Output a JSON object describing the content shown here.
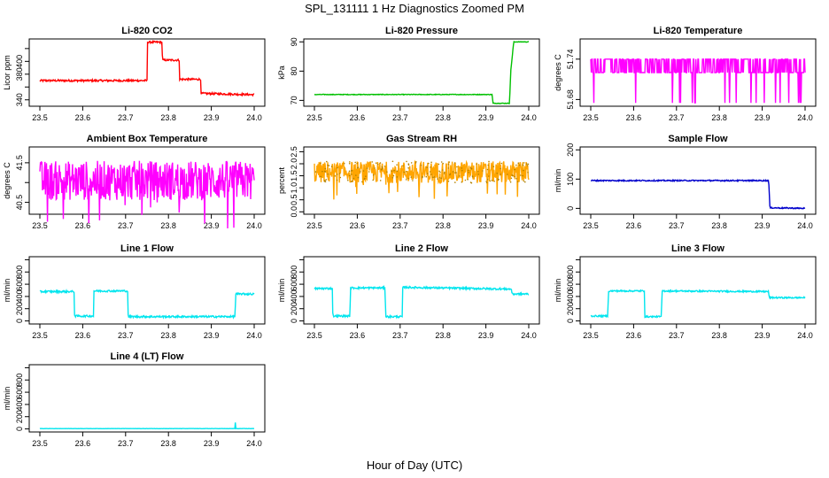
{
  "page": {
    "title": "SPL_131111  1 Hz Diagnostics Zoomed PM",
    "xaxis_title": "Hour of Day (UTC)"
  },
  "chart_data": [
    {
      "type": "line",
      "title": "Li-820 CO2",
      "ylabel": "Licor ppm",
      "color": "#ff0000",
      "xlim": [
        23.5,
        24.0
      ],
      "ylim": [
        330,
        435
      ],
      "xticks": [
        23.5,
        23.6,
        23.7,
        23.8,
        23.9,
        24.0
      ],
      "xtick_labels": [
        "23.5",
        "23.6",
        "23.7",
        "23.8",
        "23.9",
        "24.0"
      ],
      "yticks": [
        340,
        360,
        380,
        400,
        420
      ],
      "ytick_labels": [
        "340",
        "",
        "380",
        "400",
        ""
      ],
      "noise": 1.5,
      "series": [
        {
          "points": [
            [
              23.5,
              370
            ],
            [
              23.75,
              370
            ],
            [
              23.751,
              430
            ],
            [
              23.785,
              430
            ],
            [
              23.786,
              402
            ],
            [
              23.825,
              402
            ],
            [
              23.826,
              372
            ],
            [
              23.875,
              372
            ],
            [
              23.876,
              350
            ],
            [
              24.0,
              348
            ]
          ]
        }
      ]
    },
    {
      "type": "line",
      "title": "Li-820 Pressure",
      "ylabel": "kPa",
      "color": "#00c000",
      "xlim": [
        23.5,
        24.0
      ],
      "ylim": [
        68,
        91
      ],
      "xticks": [
        23.5,
        23.6,
        23.7,
        23.8,
        23.9,
        24.0
      ],
      "xtick_labels": [
        "23.5",
        "23.6",
        "23.7",
        "23.8",
        "23.9",
        "24.0"
      ],
      "yticks": [
        70,
        80,
        90
      ],
      "ytick_labels": [
        "70",
        "80",
        "90"
      ],
      "noise": 0.1,
      "series": [
        {
          "points": [
            [
              23.5,
              72
            ],
            [
              23.915,
              72
            ],
            [
              23.916,
              69
            ],
            [
              23.955,
              69
            ],
            [
              23.958,
              80
            ],
            [
              23.965,
              90
            ],
            [
              24.0,
              90
            ]
          ]
        }
      ]
    },
    {
      "type": "line",
      "title": "Li-820 Temperature",
      "ylabel": "degrees C",
      "color": "#ff00ff",
      "xlim": [
        23.5,
        24.0
      ],
      "ylim": [
        51.67,
        51.77
      ],
      "xticks": [
        23.5,
        23.6,
        23.7,
        23.8,
        23.9,
        24.0
      ],
      "xtick_labels": [
        "23.5",
        "23.6",
        "23.7",
        "23.8",
        "23.9",
        "24.0"
      ],
      "yticks": [
        51.68,
        51.74
      ],
      "ytick_labels": [
        "51.68",
        "51.74"
      ],
      "pattern": "binary",
      "levels": [
        51.72,
        51.74
      ],
      "series": [
        {
          "points": [
            [
              23.5,
              51.73
            ],
            [
              24.0,
              51.73
            ]
          ]
        }
      ]
    },
    {
      "type": "line",
      "title": "Ambient Box Temperature",
      "ylabel": "degrees C",
      "color": "#ff00ff",
      "xlim": [
        23.5,
        24.0
      ],
      "ylim": [
        40.2,
        41.9
      ],
      "xticks": [
        23.5,
        23.6,
        23.7,
        23.8,
        23.9,
        24.0
      ],
      "xtick_labels": [
        "23.5",
        "23.6",
        "23.7",
        "23.8",
        "23.9",
        "24.0"
      ],
      "yticks": [
        40.5,
        41.0,
        41.5
      ],
      "ytick_labels": [
        "40.5",
        "",
        "41.5"
      ],
      "pattern": "band",
      "band": [
        40.55,
        41.55
      ],
      "series": [
        {
          "points": [
            [
              23.5,
              41.0
            ],
            [
              24.0,
              41.0
            ]
          ]
        }
      ]
    },
    {
      "type": "line",
      "title": "Gas Stream RH",
      "ylabel": "percent",
      "color": "#ffa500",
      "dot_color": "#b08000",
      "xlim": [
        23.5,
        24.0
      ],
      "ylim": [
        -0.1,
        2.7
      ],
      "xticks": [
        23.5,
        23.6,
        23.7,
        23.8,
        23.9,
        24.0
      ],
      "xtick_labels": [
        "23.5",
        "23.6",
        "23.7",
        "23.8",
        "23.9",
        "24.0"
      ],
      "yticks": [
        0.0,
        0.5,
        1.0,
        1.5,
        2.0,
        2.5
      ],
      "ytick_labels": [
        "0.0",
        "0.5",
        "1.0",
        "1.5",
        "2.0",
        "2.5"
      ],
      "pattern": "band",
      "band": [
        1.2,
        2.1
      ],
      "series": [
        {
          "points": [
            [
              23.5,
              1.65
            ],
            [
              24.0,
              1.65
            ]
          ]
        }
      ]
    },
    {
      "type": "line",
      "title": "Sample Flow",
      "ylabel": "ml/min",
      "color": "#0000cc",
      "xlim": [
        23.5,
        24.0
      ],
      "ylim": [
        -20,
        210
      ],
      "xticks": [
        23.5,
        23.6,
        23.7,
        23.8,
        23.9,
        24.0
      ],
      "xtick_labels": [
        "23.5",
        "23.6",
        "23.7",
        "23.8",
        "23.9",
        "24.0"
      ],
      "yticks": [
        0,
        100,
        200
      ],
      "ytick_labels": [
        "0",
        "100",
        "200"
      ],
      "noise": 2,
      "series": [
        {
          "points": [
            [
              23.5,
              95
            ],
            [
              23.915,
              95
            ],
            [
              23.918,
              2
            ],
            [
              24.0,
              0
            ]
          ]
        }
      ]
    },
    {
      "type": "line",
      "title": "Line 1 Flow",
      "ylabel": "ml/min",
      "color": "#00e5ee",
      "xlim": [
        23.5,
        24.0
      ],
      "ylim": [
        -50,
        1050
      ],
      "xticks": [
        23.5,
        23.6,
        23.7,
        23.8,
        23.9,
        24.0
      ],
      "xtick_labels": [
        "23.5",
        "23.6",
        "23.7",
        "23.8",
        "23.9",
        "24.0"
      ],
      "yticks": [
        0,
        200,
        400,
        600,
        800,
        1000
      ],
      "ytick_labels": [
        "0",
        "200",
        "400",
        "600",
        "800",
        ""
      ],
      "noise": 15,
      "series": [
        {
          "points": [
            [
              23.5,
              480
            ],
            [
              23.58,
              480
            ],
            [
              23.581,
              80
            ],
            [
              23.625,
              80
            ],
            [
              23.626,
              490
            ],
            [
              23.705,
              490
            ],
            [
              23.706,
              70
            ],
            [
              23.955,
              70
            ],
            [
              23.957,
              440
            ],
            [
              24.0,
              440
            ]
          ]
        }
      ]
    },
    {
      "type": "line",
      "title": "Line 2 Flow",
      "ylabel": "ml/min",
      "color": "#00e5ee",
      "xlim": [
        23.5,
        24.0
      ],
      "ylim": [
        -50,
        1050
      ],
      "xticks": [
        23.5,
        23.6,
        23.7,
        23.8,
        23.9,
        24.0
      ],
      "xtick_labels": [
        "23.5",
        "23.6",
        "23.7",
        "23.8",
        "23.9",
        "24.0"
      ],
      "yticks": [
        0,
        200,
        400,
        600,
        800,
        1000
      ],
      "ytick_labels": [
        "0",
        "200",
        "400",
        "600",
        "800",
        ""
      ],
      "noise": 15,
      "series": [
        {
          "points": [
            [
              23.5,
              530
            ],
            [
              23.542,
              530
            ],
            [
              23.543,
              80
            ],
            [
              23.583,
              80
            ],
            [
              23.584,
              540
            ],
            [
              23.665,
              540
            ],
            [
              23.666,
              70
            ],
            [
              23.705,
              70
            ],
            [
              23.706,
              550
            ],
            [
              23.96,
              520
            ],
            [
              23.961,
              440
            ],
            [
              24.0,
              440
            ]
          ]
        }
      ]
    },
    {
      "type": "line",
      "title": "Line 3 Flow",
      "ylabel": "ml/min",
      "color": "#00e5ee",
      "xlim": [
        23.5,
        24.0
      ],
      "ylim": [
        -50,
        1050
      ],
      "xticks": [
        23.5,
        23.6,
        23.7,
        23.8,
        23.9,
        24.0
      ],
      "xtick_labels": [
        "23.5",
        "23.6",
        "23.7",
        "23.8",
        "23.9",
        "24.0"
      ],
      "yticks": [
        0,
        200,
        400,
        600,
        800,
        1000
      ],
      "ytick_labels": [
        "0",
        "200",
        "400",
        "600",
        "800",
        ""
      ],
      "noise": 12,
      "series": [
        {
          "points": [
            [
              23.5,
              80
            ],
            [
              23.54,
              80
            ],
            [
              23.541,
              490
            ],
            [
              23.625,
              490
            ],
            [
              23.626,
              70
            ],
            [
              23.665,
              70
            ],
            [
              23.666,
              490
            ],
            [
              23.915,
              480
            ],
            [
              23.916,
              380
            ],
            [
              24.0,
              380
            ]
          ]
        }
      ]
    },
    {
      "type": "line",
      "title": "Line 4 (LT) Flow",
      "ylabel": "ml/min",
      "color": "#00e5ee",
      "xlim": [
        23.5,
        24.0
      ],
      "ylim": [
        -50,
        1050
      ],
      "xticks": [
        23.5,
        23.6,
        23.7,
        23.8,
        23.9,
        24.0
      ],
      "xtick_labels": [
        "23.5",
        "23.6",
        "23.7",
        "23.8",
        "23.9",
        "24.0"
      ],
      "yticks": [
        0,
        200,
        400,
        600,
        800,
        1000
      ],
      "ytick_labels": [
        "0",
        "200",
        "400",
        "600",
        "800",
        ""
      ],
      "noise": 2,
      "series": [
        {
          "points": [
            [
              23.5,
              5
            ],
            [
              23.955,
              5
            ],
            [
              23.956,
              110
            ],
            [
              23.957,
              5
            ],
            [
              24.0,
              5
            ]
          ]
        }
      ]
    }
  ]
}
